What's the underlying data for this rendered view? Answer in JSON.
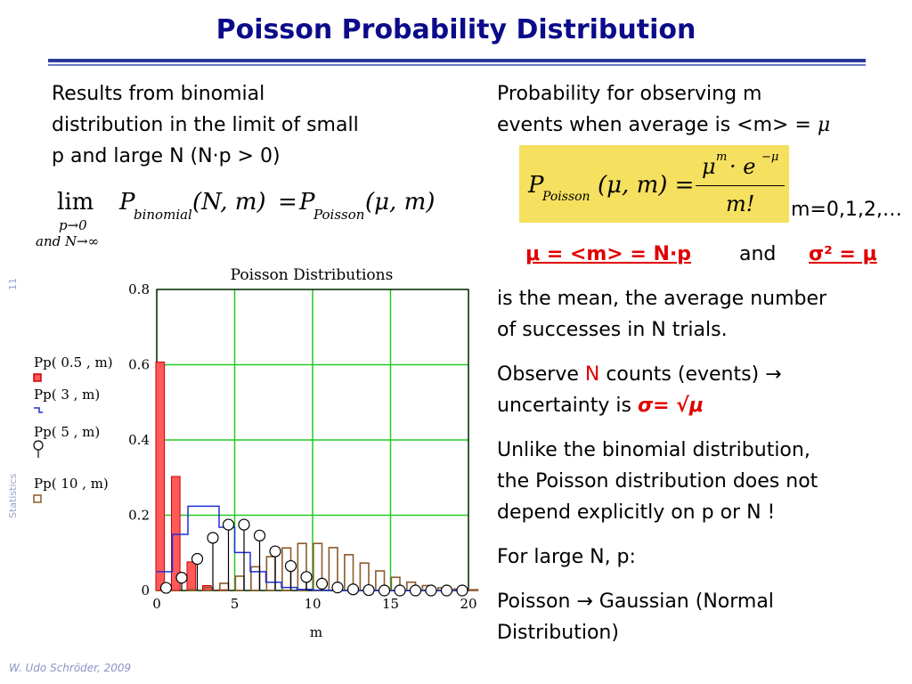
{
  "slide": {
    "title": "Poisson Probability Distribution",
    "side_number": "11",
    "side_label": "Statistics",
    "footer": "W. Udo Schröder, 2009"
  },
  "left": {
    "intro": [
      "Results from binomial",
      "distribution in the limit of small",
      "p and large N (N·p > 0)"
    ],
    "limit_formula": {
      "lim": "lim",
      "sub1": "p→0",
      "sub2": "and  N→∞",
      "lhs": "P",
      "lhs_sub": "binomial",
      "lhs_args": "(N, m)",
      "eq": "=",
      "rhs": "P",
      "rhs_sub": "Poisson",
      "rhs_args": "(μ, m)"
    }
  },
  "right": {
    "prob_line1": "Probability for observing m",
    "prob_line2": "events when average is <m> = ",
    "mu": "μ",
    "formula": {
      "P": "P",
      "P_sub": "Poisson",
      "args": "(μ, m) =",
      "num": "μ",
      "num_sup": "m",
      "num_dot": "· e",
      "num_sup2": "−μ",
      "den": "m!"
    },
    "m_range": "m=0,1,2,…",
    "mean_eq": "μ = <m> = N·p",
    "and": "and",
    "var_eq": "σ² = μ",
    "mean_desc": [
      "is the mean, the average number",
      "of successes in N trials."
    ],
    "observe_1": "Observe ",
    "observe_N": "N",
    "observe_2": " counts (events) ",
    "arrow": "→",
    "observe_3": "uncertainty is ",
    "observe_sigma": "σ= √μ",
    "unlike": [
      "Unlike the binomial distribution,",
      "the Poisson distribution does not",
      "depend explicitly on p or N !"
    ],
    "large": "For large N, p:",
    "poisson_gauss_1": "Poisson ",
    "poisson_gauss_2": " Gaussian (Normal",
    "poisson_gauss_3": "Distribution)"
  },
  "chart_data": {
    "type": "bar",
    "title": "Poisson Distributions",
    "xlabel": "m",
    "ylabel": "",
    "xlim": [
      0,
      20
    ],
    "ylim": [
      0,
      0.8
    ],
    "xticks": [
      "0",
      "5",
      "10",
      "15",
      "20"
    ],
    "yticks": [
      "0",
      "0.2",
      "0.4",
      "0.6",
      "0.8"
    ],
    "grid": true,
    "legend_position": "left",
    "x": [
      0,
      1,
      2,
      3,
      4,
      5,
      6,
      7,
      8,
      9,
      10,
      11,
      12,
      13,
      14,
      15,
      16,
      17,
      18,
      19,
      20
    ],
    "series": [
      {
        "name": "Pp( 0.5 , m)",
        "style": "bar",
        "color": "#ff5a5a",
        "values": [
          0.607,
          0.303,
          0.076,
          0.013,
          0.002,
          0,
          0,
          0,
          0,
          0,
          0,
          0,
          0,
          0,
          0,
          0,
          0,
          0,
          0,
          0,
          0
        ]
      },
      {
        "name": "Pp( 3 , m)",
        "style": "step",
        "color": "#1f2fd6",
        "values": [
          0.05,
          0.149,
          0.224,
          0.224,
          0.168,
          0.101,
          0.05,
          0.022,
          0.008,
          0.003,
          0.001,
          0,
          0,
          0,
          0,
          0,
          0,
          0,
          0,
          0,
          0
        ]
      },
      {
        "name": "Pp( 5 , m)",
        "style": "stem",
        "color": "#000000",
        "values": [
          0.007,
          0.034,
          0.084,
          0.14,
          0.175,
          0.175,
          0.146,
          0.104,
          0.065,
          0.036,
          0.018,
          0.008,
          0.003,
          0.001,
          0,
          0,
          0,
          0,
          0,
          0,
          0
        ]
      },
      {
        "name": "Pp( 10 , m)",
        "style": "bar",
        "color": "#8a5a2b",
        "values": [
          0,
          0,
          0.002,
          0.008,
          0.019,
          0.038,
          0.063,
          0.09,
          0.113,
          0.125,
          0.125,
          0.114,
          0.095,
          0.073,
          0.052,
          0.035,
          0.022,
          0.013,
          0.007,
          0.004,
          0.002
        ]
      }
    ],
    "colors": {
      "grid": "#22cc22",
      "axis": "#000000"
    }
  }
}
